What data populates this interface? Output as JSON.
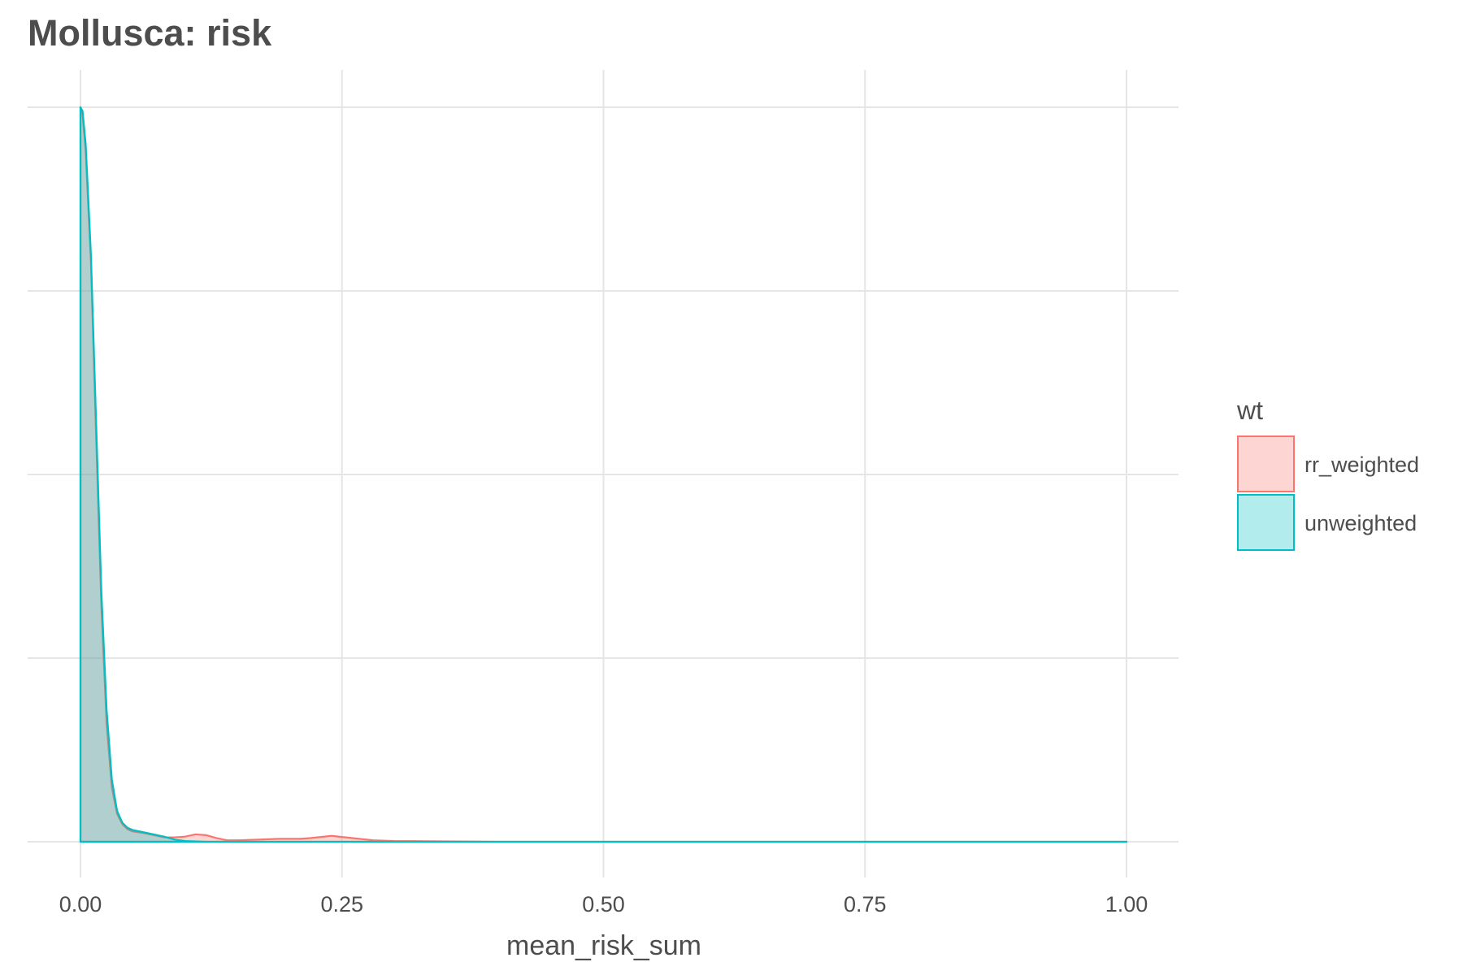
{
  "chart_data": {
    "type": "area",
    "title": "Mollusca: risk",
    "xlabel": "mean_risk_sum",
    "ylabel": "",
    "xlim": [
      0,
      1
    ],
    "ylim": [
      0,
      1
    ],
    "x_ticks": [
      0,
      0.25,
      0.5,
      0.75,
      1.0
    ],
    "x_tick_labels": [
      "0.00",
      "0.25",
      "0.50",
      "0.75",
      "1.00"
    ],
    "y_tick_labels_shown": false,
    "y_gridlines": [
      0,
      0.25,
      0.5,
      0.75,
      1.0
    ],
    "grid": true,
    "legend": {
      "title": "wt",
      "position": "right",
      "items": [
        "rr_weighted",
        "unweighted"
      ]
    },
    "series": [
      {
        "name": "rr_weighted",
        "color": "#F8766D",
        "fill": "#F8766D",
        "fill_opacity": 0.3,
        "x": [
          0,
          0.002,
          0.005,
          0.01,
          0.015,
          0.02,
          0.025,
          0.03,
          0.035,
          0.04,
          0.045,
          0.05,
          0.06,
          0.07,
          0.08,
          0.09,
          0.1,
          0.11,
          0.12,
          0.13,
          0.14,
          0.15,
          0.17,
          0.19,
          0.21,
          0.22,
          0.24,
          0.26,
          0.28,
          0.3,
          0.4,
          0.6,
          0.8,
          1.0
        ],
        "y": [
          1.0,
          0.99,
          0.94,
          0.79,
          0.55,
          0.32,
          0.16,
          0.074,
          0.038,
          0.024,
          0.017,
          0.014,
          0.012,
          0.009,
          0.006,
          0.006,
          0.007,
          0.01,
          0.009,
          0.005,
          0.002,
          0.002,
          0.003,
          0.004,
          0.004,
          0.005,
          0.008,
          0.005,
          0.002,
          0.001,
          0,
          0,
          0,
          0
        ]
      },
      {
        "name": "unweighted",
        "color": "#00BFC4",
        "fill": "#00BFC4",
        "fill_opacity": 0.3,
        "x": [
          0,
          0.002,
          0.005,
          0.01,
          0.015,
          0.02,
          0.025,
          0.03,
          0.035,
          0.04,
          0.045,
          0.05,
          0.06,
          0.07,
          0.08,
          0.09,
          0.1,
          0.12,
          0.15,
          0.2,
          0.3,
          0.4,
          0.6,
          0.8,
          1.0
        ],
        "y": [
          1.0,
          0.995,
          0.95,
          0.8,
          0.57,
          0.34,
          0.18,
          0.085,
          0.042,
          0.026,
          0.019,
          0.016,
          0.013,
          0.01,
          0.007,
          0.003,
          0.001,
          0,
          0,
          0,
          0,
          0,
          0,
          0,
          0
        ]
      }
    ]
  }
}
